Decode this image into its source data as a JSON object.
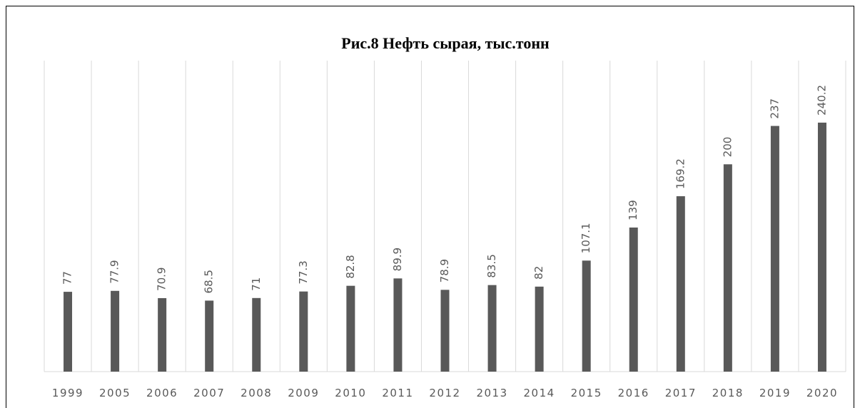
{
  "chart_data": {
    "type": "bar",
    "title": "Рис.8 Нефть сырая, тыс.тонн",
    "categories": [
      "1999",
      "2005",
      "2006",
      "2007",
      "2008",
      "2009",
      "2010",
      "2011",
      "2012",
      "2013",
      "2014",
      "2015",
      "2016",
      "2017",
      "2018",
      "2019",
      "2020"
    ],
    "values": [
      77,
      77.9,
      70.9,
      68.5,
      71,
      77.3,
      82.8,
      89.9,
      78.9,
      83.5,
      82,
      107.1,
      139,
      169.2,
      200,
      237,
      240.2
    ],
    "color": "#595959",
    "ylim": [
      0,
      300
    ],
    "grid": true
  }
}
